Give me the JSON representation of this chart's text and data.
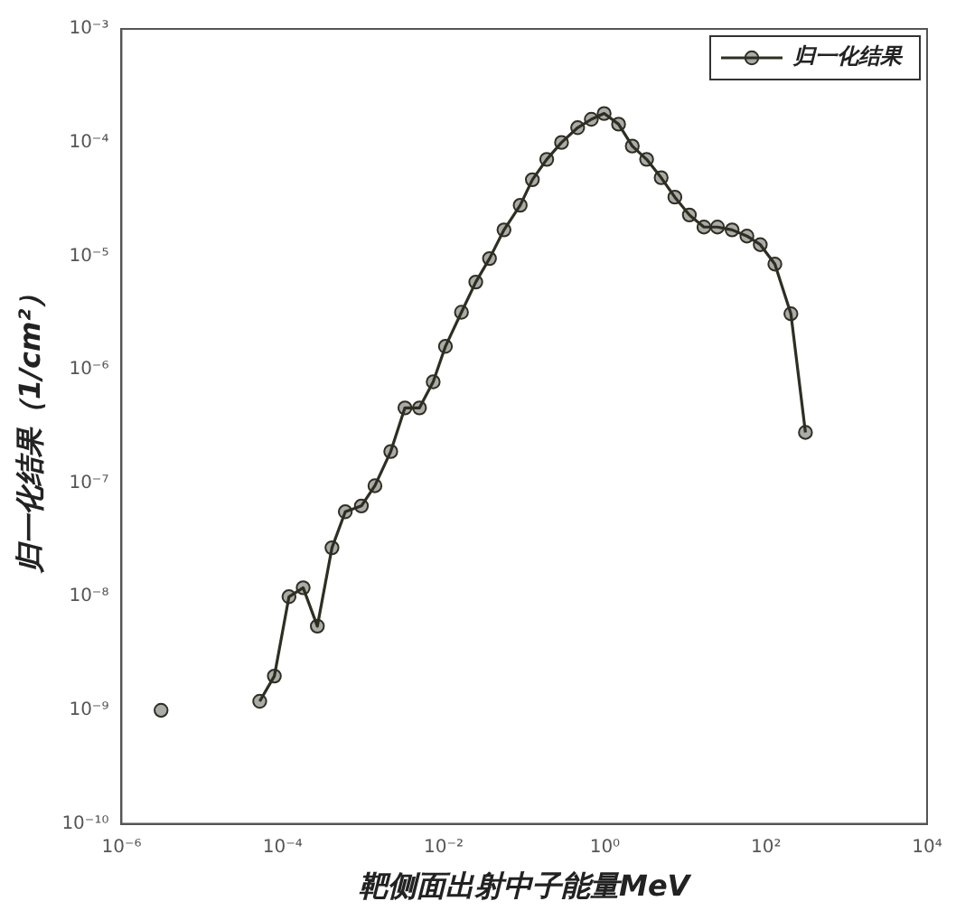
{
  "chart_data": {
    "type": "line",
    "xlabel": "靶侧面出射中子能量MeV",
    "ylabel": "归一化结果（1/cm²）",
    "log": "xy",
    "grid": false,
    "legend": "top right",
    "marker": "circle",
    "line_style": "solid",
    "xlim": [
      1e-06,
      10000.0
    ],
    "ylim": [
      1e-10,
      0.001
    ],
    "xticks": [
      {
        "value": 1e-06,
        "label": "10⁻⁶"
      },
      {
        "value": 0.0001,
        "label": "10⁻⁴"
      },
      {
        "value": 0.01,
        "label": "10⁻²"
      },
      {
        "value": 1,
        "label": "10⁰"
      },
      {
        "value": 100,
        "label": "10²"
      },
      {
        "value": 10000.0,
        "label": "10⁴"
      }
    ],
    "yticks": [
      {
        "value": 1e-10,
        "label": "10⁻¹⁰"
      },
      {
        "value": 1e-09,
        "label": "10⁻⁹"
      },
      {
        "value": 1e-08,
        "label": "10⁻⁸"
      },
      {
        "value": 1e-07,
        "label": "10⁻⁷"
      },
      {
        "value": 1e-06,
        "label": "10⁻⁶"
      },
      {
        "value": 1e-05,
        "label": "10⁻⁵"
      },
      {
        "value": 0.0001,
        "label": "10⁻⁴"
      },
      {
        "value": 0.001,
        "label": "10⁻³"
      }
    ],
    "series": [
      {
        "name": "归一化结果",
        "color": "#2e2e24",
        "x": [
          3.1e-06,
          1e-05,
          5.2e-05,
          7.9e-05,
          0.00012,
          0.00018,
          0.00027,
          0.00041,
          0.0006,
          0.00095,
          0.0014,
          0.0022,
          0.0033,
          0.005,
          0.0074,
          0.0105,
          0.0166,
          0.025,
          0.037,
          0.056,
          0.089,
          0.126,
          0.19,
          0.29,
          0.46,
          0.68,
          0.98,
          1.48,
          2.19,
          3.3,
          5.0,
          7.4,
          11.2,
          17,
          25,
          38,
          58,
          85,
          129,
          204,
          309
        ],
        "values": [
          1e-09,
          null,
          1.2e-09,
          2e-09,
          1e-08,
          1.2e-08,
          5.5e-09,
          2.7e-08,
          5.6e-08,
          6.3e-08,
          9.5e-08,
          1.9e-07,
          4.6e-07,
          4.6e-07,
          7.8e-07,
          1.6e-06,
          3.2e-06,
          5.9e-06,
          9.5e-06,
          1.7e-05,
          2.8e-05,
          4.7e-05,
          7.1e-05,
          0.0001,
          0.000135,
          0.00016,
          0.00018,
          0.000145,
          9.3e-05,
          7.1e-05,
          4.9e-05,
          3.3e-05,
          2.3e-05,
          1.8e-05,
          1.8e-05,
          1.7e-05,
          1.5e-05,
          1.26e-05,
          8.5e-06,
          3.1e-06,
          2.8e-07
        ]
      }
    ]
  }
}
